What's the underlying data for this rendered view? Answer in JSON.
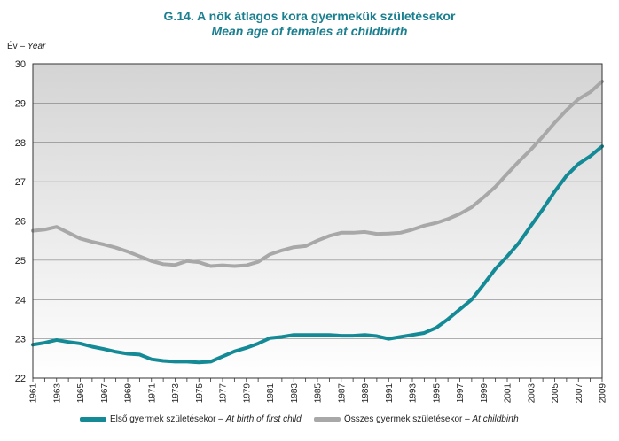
{
  "title_hu": "G.14. A nők átlagos kora gyermekük születésekor",
  "title_en": "Mean age of females at childbirth",
  "chart_data": {
    "type": "line",
    "ylabel_hu": "Év –",
    "ylabel_en": "Year",
    "ylim": [
      22,
      30
    ],
    "yticks": [
      22,
      23,
      24,
      25,
      26,
      27,
      28,
      29,
      30
    ],
    "x": [
      1961,
      1962,
      1963,
      1964,
      1965,
      1966,
      1967,
      1968,
      1969,
      1970,
      1971,
      1972,
      1973,
      1974,
      1975,
      1976,
      1977,
      1978,
      1979,
      1980,
      1981,
      1982,
      1983,
      1984,
      1985,
      1986,
      1987,
      1988,
      1989,
      1990,
      1991,
      1992,
      1993,
      1994,
      1995,
      1996,
      1997,
      1998,
      1999,
      2000,
      2001,
      2002,
      2003,
      2004,
      2005,
      2006,
      2007,
      2008,
      2009
    ],
    "xtick_labels": [
      "1961",
      "1963",
      "1965",
      "1967",
      "1969",
      "1971",
      "1973",
      "1975",
      "1977",
      "1979",
      "1981",
      "1983",
      "1985",
      "1987",
      "1989",
      "1991",
      "1993",
      "1995",
      "1997",
      "1999",
      "2001",
      "2003",
      "2005",
      "2007",
      "2009"
    ],
    "grid": true,
    "legend_position": "bottom",
    "series": [
      {
        "name_hu": "Első gyermek születésekor –",
        "name_en": "At birth of first child",
        "color": "#138a96",
        "values": [
          22.85,
          22.9,
          22.97,
          22.92,
          22.88,
          22.8,
          22.74,
          22.67,
          22.62,
          22.6,
          22.48,
          22.44,
          22.42,
          22.42,
          22.4,
          22.42,
          22.55,
          22.68,
          22.77,
          22.88,
          23.02,
          23.05,
          23.1,
          23.1,
          23.1,
          23.1,
          23.08,
          23.08,
          23.1,
          23.07,
          23.0,
          23.05,
          23.1,
          23.15,
          23.28,
          23.5,
          23.75,
          24.0,
          24.38,
          24.78,
          25.1,
          25.45,
          25.88,
          26.3,
          26.75,
          27.15,
          27.45,
          27.65,
          27.9
        ]
      },
      {
        "name_hu": "Összes gyermek születésekor –",
        "name_en": "At childbirth",
        "color": "#a8a8a8",
        "values": [
          25.75,
          25.78,
          25.85,
          25.7,
          25.55,
          25.47,
          25.4,
          25.32,
          25.22,
          25.1,
          24.98,
          24.9,
          24.88,
          24.98,
          24.95,
          24.85,
          24.87,
          24.85,
          24.87,
          24.96,
          25.15,
          25.25,
          25.33,
          25.36,
          25.5,
          25.62,
          25.7,
          25.7,
          25.72,
          25.67,
          25.68,
          25.7,
          25.78,
          25.88,
          25.95,
          26.05,
          26.18,
          26.35,
          26.6,
          26.87,
          27.2,
          27.52,
          27.82,
          28.15,
          28.5,
          28.82,
          29.1,
          29.28,
          29.55
        ]
      }
    ]
  }
}
